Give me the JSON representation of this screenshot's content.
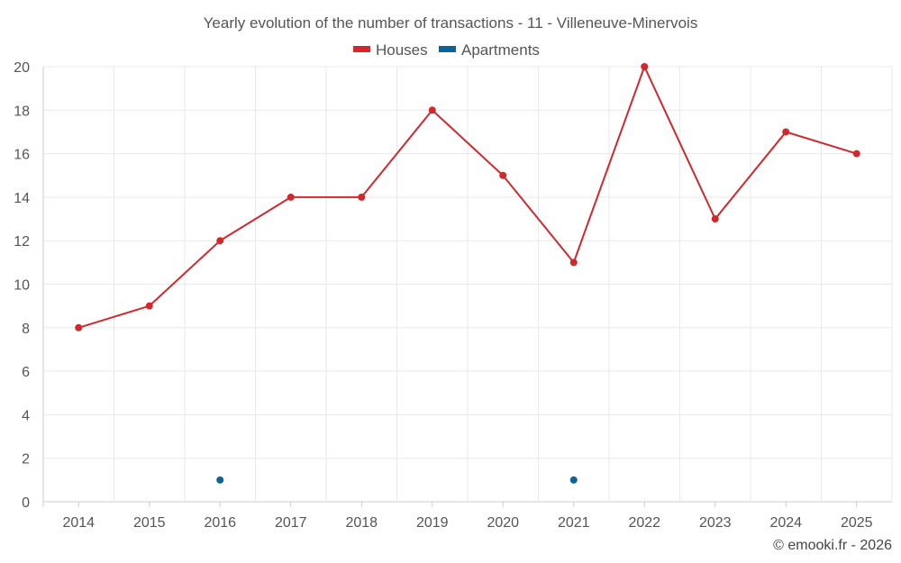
{
  "chart_data": {
    "type": "line",
    "title": "Yearly evolution of the number of transactions - 11 - Villeneuve-Minervois",
    "categories": [
      "2014",
      "2015",
      "2016",
      "2017",
      "2018",
      "2019",
      "2020",
      "2021",
      "2022",
      "2023",
      "2024",
      "2025"
    ],
    "series": [
      {
        "name": "Houses",
        "color": "#d0282c",
        "values": [
          8,
          9,
          12,
          14,
          14,
          18,
          15,
          11,
          20,
          13,
          17,
          16
        ]
      },
      {
        "name": "Apartments",
        "color": "#0a6496",
        "values": [
          null,
          null,
          1,
          null,
          null,
          null,
          null,
          1,
          null,
          null,
          null,
          null
        ]
      }
    ],
    "ylim": [
      0,
      20
    ],
    "yticks": [
      0,
      2,
      4,
      6,
      8,
      10,
      12,
      14,
      16,
      18,
      20
    ],
    "grid": true,
    "legend": "top-center",
    "xlabel": "",
    "ylabel": ""
  },
  "credit": "© emooki.fr - 2026"
}
